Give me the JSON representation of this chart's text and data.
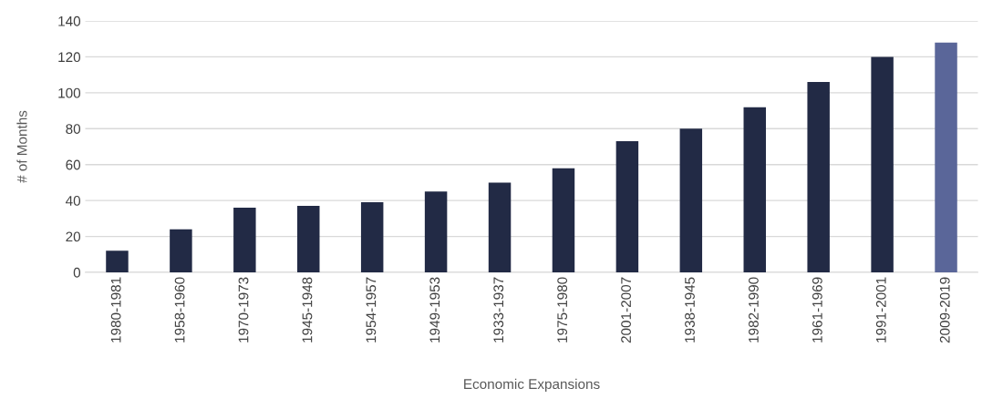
{
  "chart_data": {
    "type": "bar",
    "xlabel": "Economic Expansions",
    "ylabel": "# of Months",
    "categories": [
      "1980-1981",
      "1958-1960",
      "1970-1973",
      "1945-1948",
      "1954-1957",
      "1949-1953",
      "1933-1937",
      "1975-1980",
      "2001-2007",
      "1938-1945",
      "1982-1990",
      "1961-1969",
      "1991-2001",
      "2009-2019"
    ],
    "values": [
      12,
      24,
      36,
      37,
      39,
      45,
      50,
      58,
      73,
      80,
      92,
      106,
      120,
      128
    ],
    "colors": [
      "#222a45",
      "#222a45",
      "#222a45",
      "#222a45",
      "#222a45",
      "#222a45",
      "#222a45",
      "#222a45",
      "#222a45",
      "#222a45",
      "#222a45",
      "#222a45",
      "#222a45",
      "#5a6699"
    ],
    "ylim": [
      0,
      140
    ],
    "yticks": [
      0,
      20,
      40,
      60,
      80,
      100,
      120,
      140
    ],
    "grid": "y",
    "legend": false
  }
}
